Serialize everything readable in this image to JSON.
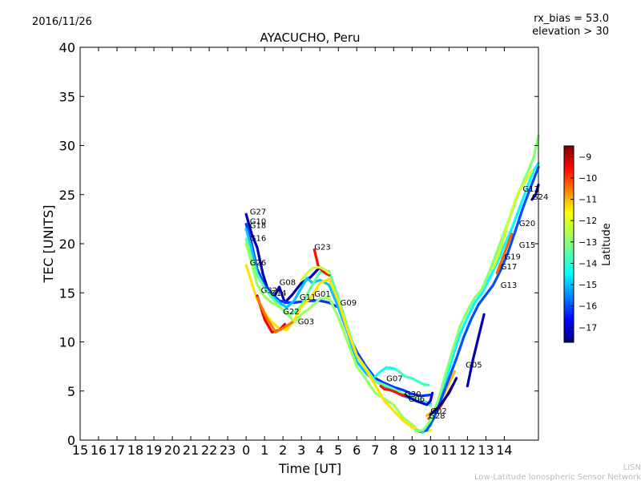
{
  "header": {
    "date": "2016/11/26",
    "rx_bias": "rx_bias = 53.0",
    "elevation": "elevation > 30"
  },
  "footer": {
    "line1": "LISN",
    "line2": "Low-Latitude Ionospheric Sensor Network"
  },
  "chart_data": {
    "type": "line",
    "title": "AYACUCHO, Peru",
    "xlabel": "Time [UT]",
    "ylabel": "TEC [UNITS]",
    "xlim": [
      15,
      39.85
    ],
    "ylim": [
      0,
      40
    ],
    "grid": false,
    "x_tick_labels": [
      "15",
      "16",
      "17",
      "18",
      "19",
      "20",
      "21",
      "22",
      "23",
      "0",
      "1",
      "2",
      "3",
      "4",
      "5",
      "6",
      "7",
      "8",
      "9",
      "10",
      "11",
      "12",
      "13",
      "14"
    ],
    "y_ticks": [
      0,
      5,
      10,
      15,
      20,
      25,
      30,
      35,
      40
    ],
    "colorbar": {
      "label": "Latitude",
      "range": [
        -17.7,
        -8.5
      ],
      "ticks": [
        -9,
        -10,
        -11,
        -12,
        -13,
        -14,
        -15,
        -16,
        -17
      ],
      "tick_labels": [
        "−9",
        "−10",
        "−11",
        "−12",
        "−13",
        "−14",
        "−15",
        "−16",
        "−17"
      ],
      "colormap": "jet",
      "placement": "right"
    },
    "satellite_labels": [
      {
        "text": "G27",
        "x": 24.2,
        "y": 23.0
      },
      {
        "text": "G10",
        "x": 24.2,
        "y": 22.0
      },
      {
        "text": "G18",
        "x": 24.2,
        "y": 21.6
      },
      {
        "text": "G16",
        "x": 24.2,
        "y": 20.3
      },
      {
        "text": "G26",
        "x": 24.2,
        "y": 17.8
      },
      {
        "text": "G32",
        "x": 24.8,
        "y": 15.0
      },
      {
        "text": "G14",
        "x": 25.3,
        "y": 14.7
      },
      {
        "text": "G08",
        "x": 25.8,
        "y": 15.8
      },
      {
        "text": "G22",
        "x": 26.0,
        "y": 12.8
      },
      {
        "text": "G03",
        "x": 26.8,
        "y": 11.8
      },
      {
        "text": "G11",
        "x": 26.9,
        "y": 14.3
      },
      {
        "text": "G01",
        "x": 27.7,
        "y": 14.6
      },
      {
        "text": "G23",
        "x": 27.7,
        "y": 19.4
      },
      {
        "text": "G09",
        "x": 29.1,
        "y": 13.7
      },
      {
        "text": "G07",
        "x": 31.6,
        "y": 6.0
      },
      {
        "text": "G30",
        "x": 32.6,
        "y": 4.4
      },
      {
        "text": "G06",
        "x": 32.8,
        "y": 3.9
      },
      {
        "text": "G02",
        "x": 34.0,
        "y": 2.7
      },
      {
        "text": "G28",
        "x": 33.9,
        "y": 2.2
      },
      {
        "text": "G05",
        "x": 35.9,
        "y": 7.4
      },
      {
        "text": "G13",
        "x": 37.8,
        "y": 15.5
      },
      {
        "text": "G17",
        "x": 37.8,
        "y": 17.4
      },
      {
        "text": "G19",
        "x": 38.0,
        "y": 18.4
      },
      {
        "text": "G15",
        "x": 38.8,
        "y": 19.6
      },
      {
        "text": "G20",
        "x": 38.8,
        "y": 21.8
      },
      {
        "text": "G12",
        "x": 39.0,
        "y": 25.3
      },
      {
        "text": "G24",
        "x": 39.5,
        "y": 24.5
      }
    ],
    "series": [
      {
        "latitude": -17.3,
        "x": [
          24.0,
          24.3,
          24.6,
          24.9,
          25.2,
          25.5,
          25.8,
          26.1,
          26.5,
          27.0,
          27.5,
          28.0,
          28.3,
          28.5
        ],
        "y": [
          23.0,
          21.0,
          19.6,
          17.0,
          15.2,
          14.5,
          15.6,
          14.0,
          14.8,
          16.0,
          16.6,
          17.6,
          17.3,
          17.0
        ]
      },
      {
        "latitude": -16.2,
        "x": [
          24.0,
          24.3,
          24.6,
          25.0,
          25.4,
          25.8,
          26.2,
          26.6,
          27.0,
          27.5,
          28.0,
          28.5,
          29.0,
          29.5,
          30.0,
          30.5,
          31.0,
          31.5,
          32.0,
          32.5,
          33.0,
          33.5,
          34.0
        ],
        "y": [
          22.0,
          20.0,
          17.4,
          15.8,
          14.9,
          14.2,
          14.0,
          14.0,
          14.1,
          14.2,
          14.2,
          14.0,
          13.5,
          11.0,
          9.0,
          7.5,
          6.3,
          5.8,
          5.4,
          5.1,
          4.7,
          4.5,
          4.6
        ]
      },
      {
        "latitude": -15.0,
        "x": [
          24.0,
          24.3,
          24.6,
          25.0,
          25.4,
          25.8,
          26.2,
          26.6,
          27.0,
          27.3,
          27.6,
          28.0,
          28.5,
          29.0,
          29.5,
          30.0,
          30.5,
          31.0,
          31.5,
          32.0,
          32.5,
          33.0,
          33.5,
          34.0
        ],
        "y": [
          21.5,
          19.5,
          17.0,
          15.5,
          14.7,
          14.0,
          13.5,
          14.2,
          15.5,
          16.5,
          16.0,
          16.3,
          15.8,
          13.5,
          11.0,
          8.0,
          6.8,
          6.0,
          5.5,
          5.0,
          4.5,
          4.2,
          4.0,
          3.7
        ]
      },
      {
        "latitude": -13.5,
        "x": [
          24.0,
          24.3,
          24.6,
          25.0,
          25.4,
          25.8,
          26.2,
          26.6,
          27.0,
          27.5,
          28.0,
          28.5,
          29.0,
          29.5,
          30.0,
          30.5,
          31.0,
          31.5,
          32.0,
          32.5,
          33.0,
          33.5,
          34.0
        ],
        "y": [
          20.5,
          18.5,
          16.8,
          15.5,
          14.5,
          13.7,
          12.8,
          13.0,
          13.7,
          15.5,
          17.1,
          17.2,
          14.5,
          11.5,
          8.6,
          7.3,
          6.0,
          5.6,
          5.2,
          4.7,
          4.4,
          4.0,
          3.5
        ]
      },
      {
        "latitude": -12.8,
        "x": [
          24.0,
          24.3,
          24.6,
          25.0,
          25.4,
          25.8,
          26.2,
          26.6,
          27.0,
          27.5,
          28.0,
          28.5,
          29.0,
          29.5,
          30.0,
          30.5,
          31.0,
          31.5,
          32.0,
          32.5,
          33.0,
          33.3,
          33.5
        ],
        "y": [
          20.0,
          18.0,
          15.8,
          14.6,
          14.0,
          13.6,
          13.0,
          12.0,
          12.8,
          13.5,
          14.4,
          14.5,
          12.5,
          10.0,
          7.5,
          6.2,
          4.8,
          4.2,
          3.6,
          2.3,
          1.6,
          1.0,
          0.8
        ]
      },
      {
        "latitude": -11.4,
        "x": [
          24.0,
          24.3,
          24.6,
          25.0,
          25.4,
          25.8,
          26.2,
          26.6,
          27.0,
          27.5,
          28.0,
          28.5,
          29.0,
          29.5,
          30.0,
          30.5,
          31.0,
          31.5,
          32.0,
          32.5,
          33.0,
          33.5,
          34.0
        ],
        "y": [
          17.8,
          16.0,
          14.3,
          13.0,
          12.0,
          11.4,
          11.2,
          12.2,
          13.6,
          14.5,
          16.0,
          16.4,
          14.2,
          11.2,
          8.6,
          7.2,
          5.6,
          4.0,
          3.0,
          2.0,
          1.3,
          0.9,
          1.0
        ]
      },
      {
        "latitude": -9.4,
        "x": [
          24.6,
          25.0,
          25.4,
          25.8,
          26.1
        ],
        "y": [
          14.7,
          12.3,
          11.0,
          11.2,
          11.8
        ]
      },
      {
        "latitude": -10.5,
        "x": [
          24.6,
          25.1,
          25.6,
          26.1,
          26.5
        ],
        "y": [
          14.5,
          12.5,
          11.0,
          11.5,
          12.0
        ]
      },
      {
        "latitude": -9.6,
        "x": [
          27.7,
          27.9,
          28.1,
          28.3,
          28.5
        ],
        "y": [
          19.4,
          17.8,
          17.3,
          17.0,
          16.8
        ]
      },
      {
        "latitude": -12.3,
        "x": [
          27.0,
          27.3,
          27.6,
          28.0,
          28.3,
          28.5
        ],
        "y": [
          16.3,
          17.0,
          17.5,
          17.6,
          17.3,
          17.0
        ]
      },
      {
        "latitude": -13.8,
        "x": [
          31.8,
          32.0,
          32.3,
          32.6,
          33.0,
          33.3,
          33.6,
          33.9
        ],
        "y": [
          7.4,
          7.3,
          7.0,
          6.5,
          6.3,
          6.0,
          5.7,
          5.6
        ]
      },
      {
        "latitude": -14.3,
        "x": [
          31.0,
          31.3,
          31.6,
          31.9,
          32.0
        ],
        "y": [
          6.5,
          7.0,
          7.4,
          7.3,
          7.3
        ]
      },
      {
        "latitude": -16.9,
        "x": [
          32.6,
          32.9,
          33.2,
          33.5,
          33.8,
          34.0,
          34.1
        ],
        "y": [
          4.6,
          4.3,
          4.0,
          3.8,
          3.6,
          4.0,
          4.8
        ]
      },
      {
        "latitude": -9.6,
        "x": [
          31.3,
          31.5,
          31.8,
          32.1,
          32.3,
          32.6
        ],
        "y": [
          5.5,
          5.2,
          5.1,
          4.9,
          4.7,
          4.5
        ]
      },
      {
        "latitude": -9.8,
        "x": [
          33.9,
          34.1,
          34.3,
          34.6,
          34.9,
          35.2
        ],
        "y": [
          2.2,
          2.4,
          2.8,
          3.6,
          4.6,
          5.6
        ]
      },
      {
        "latitude": -11.0,
        "x": [
          33.8,
          34.1,
          34.4,
          34.7,
          35.0,
          35.3
        ],
        "y": [
          2.5,
          2.9,
          3.6,
          4.6,
          5.8,
          7.0
        ]
      },
      {
        "latitude": -14.5,
        "x": [
          33.2,
          33.6,
          34.0,
          34.4,
          34.8,
          35.2,
          35.6,
          36.0,
          36.4,
          36.8,
          37.2,
          37.6,
          38.0,
          38.4,
          38.8,
          39.2,
          39.6,
          39.85
        ],
        "y": [
          1.0,
          0.8,
          1.5,
          3.6,
          5.8,
          8.5,
          10.8,
          12.5,
          14.0,
          15.0,
          16.5,
          18.0,
          19.8,
          21.5,
          23.5,
          25.5,
          27.5,
          28.2
        ]
      },
      {
        "latitude": -16.0,
        "x": [
          33.4,
          33.8,
          34.2,
          34.6,
          35.0,
          35.4,
          35.8,
          36.2,
          36.6,
          37.0,
          37.4,
          37.8,
          38.2,
          38.6,
          39.0,
          39.4,
          39.85
        ],
        "y": [
          0.9,
          1.0,
          2.3,
          4.3,
          6.3,
          8.3,
          10.5,
          12.3,
          13.8,
          14.8,
          15.8,
          17.3,
          19.1,
          21.3,
          23.6,
          25.6,
          27.8
        ]
      },
      {
        "latitude": -13.0,
        "x": [
          33.2,
          33.6,
          34.0,
          34.4,
          34.8,
          35.2,
          35.6,
          36.0,
          36.4,
          36.8,
          37.2,
          37.6,
          38.0,
          38.4,
          38.8,
          39.2,
          39.6,
          39.85
        ],
        "y": [
          0.9,
          1.0,
          2.0,
          4.0,
          6.6,
          9.2,
          11.6,
          13.2,
          14.5,
          15.4,
          17.2,
          19.2,
          21.2,
          23.2,
          25.3,
          27.0,
          28.8,
          31.0
        ]
      },
      {
        "latitude": -12.2,
        "x": [
          37.4,
          37.7,
          38.0,
          38.3,
          38.6,
          38.9,
          39.2,
          39.5
        ],
        "y": [
          17.5,
          19.0,
          20.8,
          22.7,
          24.5,
          25.7,
          26.5,
          27.4
        ]
      },
      {
        "latitude": -10.3,
        "x": [
          37.6,
          37.8,
          38.0,
          38.2,
          38.4
        ],
        "y": [
          17.0,
          18.0,
          19.0,
          20.0,
          21.0
        ]
      },
      {
        "latitude": -17.3,
        "x": [
          36.0,
          36.3,
          36.6,
          36.9
        ],
        "y": [
          5.5,
          8.2,
          10.5,
          12.8
        ]
      },
      {
        "latitude": -17.4,
        "x": [
          39.5,
          39.7,
          39.85
        ],
        "y": [
          24.5,
          25.0,
          26.0
        ]
      },
      {
        "latitude": -17.6,
        "x": [
          34.0,
          34.5,
          35.0,
          35.4
        ],
        "y": [
          2.6,
          3.5,
          4.8,
          6.3
        ]
      }
    ]
  }
}
